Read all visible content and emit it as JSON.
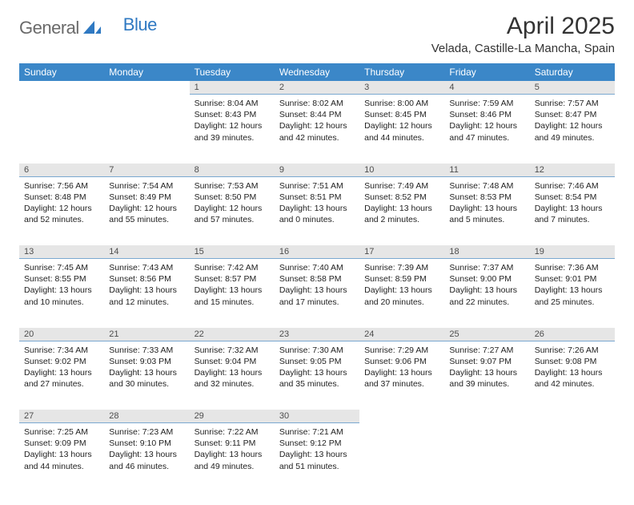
{
  "brand": {
    "text1": "General",
    "text2": "Blue"
  },
  "title": "April 2025",
  "location": "Velada, Castille-La Mancha, Spain",
  "colors": {
    "header_bg": "#3b87c8",
    "header_text": "#ffffff",
    "daynum_bg": "#e6e6e6",
    "daynum_border": "#7aa8d0",
    "brand_gray": "#6a6a6a",
    "brand_blue": "#2f79c2",
    "body_text": "#222222",
    "page_bg": "#ffffff"
  },
  "typography": {
    "title_fontsize": 30,
    "location_fontsize": 15,
    "weekday_fontsize": 12,
    "daynum_fontsize": 11,
    "cell_fontsize": 10.5,
    "font_family": "Arial"
  },
  "weekdays": [
    "Sunday",
    "Monday",
    "Tuesday",
    "Wednesday",
    "Thursday",
    "Friday",
    "Saturday"
  ],
  "weeks": [
    [
      null,
      null,
      {
        "n": "1",
        "sr": "8:04 AM",
        "ss": "8:43 PM",
        "dl": "12 hours and 39 minutes."
      },
      {
        "n": "2",
        "sr": "8:02 AM",
        "ss": "8:44 PM",
        "dl": "12 hours and 42 minutes."
      },
      {
        "n": "3",
        "sr": "8:00 AM",
        "ss": "8:45 PM",
        "dl": "12 hours and 44 minutes."
      },
      {
        "n": "4",
        "sr": "7:59 AM",
        "ss": "8:46 PM",
        "dl": "12 hours and 47 minutes."
      },
      {
        "n": "5",
        "sr": "7:57 AM",
        "ss": "8:47 PM",
        "dl": "12 hours and 49 minutes."
      }
    ],
    [
      {
        "n": "6",
        "sr": "7:56 AM",
        "ss": "8:48 PM",
        "dl": "12 hours and 52 minutes."
      },
      {
        "n": "7",
        "sr": "7:54 AM",
        "ss": "8:49 PM",
        "dl": "12 hours and 55 minutes."
      },
      {
        "n": "8",
        "sr": "7:53 AM",
        "ss": "8:50 PM",
        "dl": "12 hours and 57 minutes."
      },
      {
        "n": "9",
        "sr": "7:51 AM",
        "ss": "8:51 PM",
        "dl": "13 hours and 0 minutes."
      },
      {
        "n": "10",
        "sr": "7:49 AM",
        "ss": "8:52 PM",
        "dl": "13 hours and 2 minutes."
      },
      {
        "n": "11",
        "sr": "7:48 AM",
        "ss": "8:53 PM",
        "dl": "13 hours and 5 minutes."
      },
      {
        "n": "12",
        "sr": "7:46 AM",
        "ss": "8:54 PM",
        "dl": "13 hours and 7 minutes."
      }
    ],
    [
      {
        "n": "13",
        "sr": "7:45 AM",
        "ss": "8:55 PM",
        "dl": "13 hours and 10 minutes."
      },
      {
        "n": "14",
        "sr": "7:43 AM",
        "ss": "8:56 PM",
        "dl": "13 hours and 12 minutes."
      },
      {
        "n": "15",
        "sr": "7:42 AM",
        "ss": "8:57 PM",
        "dl": "13 hours and 15 minutes."
      },
      {
        "n": "16",
        "sr": "7:40 AM",
        "ss": "8:58 PM",
        "dl": "13 hours and 17 minutes."
      },
      {
        "n": "17",
        "sr": "7:39 AM",
        "ss": "8:59 PM",
        "dl": "13 hours and 20 minutes."
      },
      {
        "n": "18",
        "sr": "7:37 AM",
        "ss": "9:00 PM",
        "dl": "13 hours and 22 minutes."
      },
      {
        "n": "19",
        "sr": "7:36 AM",
        "ss": "9:01 PM",
        "dl": "13 hours and 25 minutes."
      }
    ],
    [
      {
        "n": "20",
        "sr": "7:34 AM",
        "ss": "9:02 PM",
        "dl": "13 hours and 27 minutes."
      },
      {
        "n": "21",
        "sr": "7:33 AM",
        "ss": "9:03 PM",
        "dl": "13 hours and 30 minutes."
      },
      {
        "n": "22",
        "sr": "7:32 AM",
        "ss": "9:04 PM",
        "dl": "13 hours and 32 minutes."
      },
      {
        "n": "23",
        "sr": "7:30 AM",
        "ss": "9:05 PM",
        "dl": "13 hours and 35 minutes."
      },
      {
        "n": "24",
        "sr": "7:29 AM",
        "ss": "9:06 PM",
        "dl": "13 hours and 37 minutes."
      },
      {
        "n": "25",
        "sr": "7:27 AM",
        "ss": "9:07 PM",
        "dl": "13 hours and 39 minutes."
      },
      {
        "n": "26",
        "sr": "7:26 AM",
        "ss": "9:08 PM",
        "dl": "13 hours and 42 minutes."
      }
    ],
    [
      {
        "n": "27",
        "sr": "7:25 AM",
        "ss": "9:09 PM",
        "dl": "13 hours and 44 minutes."
      },
      {
        "n": "28",
        "sr": "7:23 AM",
        "ss": "9:10 PM",
        "dl": "13 hours and 46 minutes."
      },
      {
        "n": "29",
        "sr": "7:22 AM",
        "ss": "9:11 PM",
        "dl": "13 hours and 49 minutes."
      },
      {
        "n": "30",
        "sr": "7:21 AM",
        "ss": "9:12 PM",
        "dl": "13 hours and 51 minutes."
      },
      null,
      null,
      null
    ]
  ],
  "labels": {
    "sunrise": "Sunrise:",
    "sunset": "Sunset:",
    "daylight": "Daylight:"
  }
}
